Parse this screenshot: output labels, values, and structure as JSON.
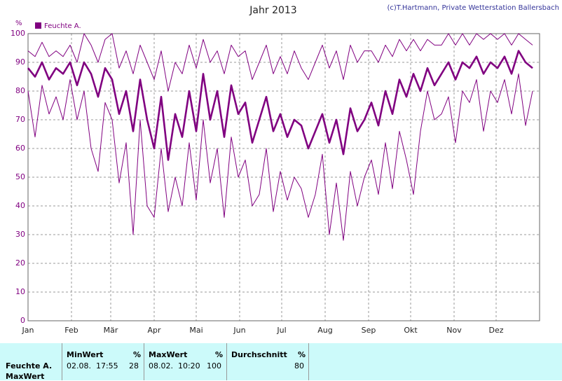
{
  "chart_data": {
    "type": "line",
    "title": "Jahr 2013",
    "credit": "(c)T.Hartmann, Private Wetterstation Ballersbach",
    "y_label": "%",
    "x": [
      1,
      6,
      11,
      16,
      21,
      26,
      31,
      36,
      41,
      46,
      51,
      56,
      61,
      66,
      71,
      76,
      81,
      86,
      91,
      96,
      101,
      106,
      111,
      116,
      121,
      126,
      131,
      136,
      141,
      146,
      151,
      156,
      161,
      166,
      171,
      176,
      181,
      186,
      191,
      196,
      201,
      206,
      211,
      216,
      221,
      226,
      231,
      236,
      241,
      246,
      251,
      256,
      261,
      266,
      271,
      276,
      281,
      286,
      291,
      296,
      301,
      306,
      311,
      316,
      321,
      326,
      331,
      336,
      341,
      346,
      351,
      356,
      361
    ],
    "xlim": [
      1,
      366
    ],
    "xticks": [
      {
        "value": 1,
        "label": "Jan"
      },
      {
        "value": 32,
        "label": "Feb"
      },
      {
        "value": 60,
        "label": "Mär"
      },
      {
        "value": 91,
        "label": "Apr"
      },
      {
        "value": 121,
        "label": "Mai"
      },
      {
        "value": 152,
        "label": "Jun"
      },
      {
        "value": 182,
        "label": "Jul"
      },
      {
        "value": 213,
        "label": "Aug"
      },
      {
        "value": 244,
        "label": "Sep"
      },
      {
        "value": 274,
        "label": "Okt"
      },
      {
        "value": 305,
        "label": "Nov"
      },
      {
        "value": 335,
        "label": "Dez"
      }
    ],
    "ylim": [
      0,
      100
    ],
    "yticks": [
      0,
      10,
      20,
      30,
      40,
      50,
      60,
      70,
      80,
      90,
      100
    ],
    "grid": true,
    "series": [
      {
        "color": "#800080",
        "values": [
          80,
          64,
          82,
          72,
          78,
          70,
          84,
          70,
          80,
          60,
          52,
          76,
          70,
          48,
          62,
          30,
          70,
          40,
          36,
          60,
          38,
          50,
          40,
          62,
          42,
          70,
          48,
          60,
          36,
          64,
          50,
          56,
          40,
          44,
          60,
          38,
          52,
          42,
          50,
          46,
          36,
          44,
          58,
          30,
          48,
          28,
          52,
          40,
          50,
          56,
          44,
          62,
          46,
          66,
          56,
          44,
          66,
          80,
          70,
          72,
          78,
          62,
          80,
          76,
          84,
          66,
          80,
          76,
          84,
          72,
          86,
          68,
          80
        ]
      },
      {
        "color": "#800080",
        "values": [
          94,
          92,
          97,
          92,
          94,
          92,
          96,
          90,
          100,
          96,
          90,
          98,
          100,
          88,
          94,
          86,
          96,
          90,
          84,
          94,
          80,
          90,
          86,
          96,
          88,
          98,
          90,
          94,
          86,
          96,
          92,
          94,
          84,
          90,
          96,
          86,
          92,
          86,
          94,
          88,
          84,
          90,
          96,
          88,
          94,
          84,
          96,
          90,
          94,
          94,
          90,
          96,
          92,
          98,
          94,
          98,
          94,
          98,
          96,
          96,
          100,
          96,
          100,
          96,
          100,
          98,
          100,
          98,
          100,
          96,
          100,
          98,
          96
        ]
      },
      {
        "name": "Feuchte A.",
        "color": "#800080",
        "values": [
          88,
          85,
          90,
          84,
          88,
          86,
          90,
          82,
          90,
          86,
          78,
          88,
          84,
          72,
          80,
          66,
          84,
          70,
          60,
          78,
          56,
          72,
          64,
          80,
          66,
          86,
          70,
          80,
          64,
          82,
          72,
          76,
          62,
          70,
          78,
          66,
          72,
          64,
          70,
          68,
          60,
          66,
          72,
          62,
          70,
          58,
          74,
          66,
          70,
          76,
          68,
          80,
          72,
          84,
          78,
          86,
          80,
          88,
          82,
          86,
          90,
          84,
          90,
          88,
          92,
          86,
          90,
          88,
          92,
          86,
          94,
          90,
          88
        ]
      }
    ]
  },
  "table": {
    "header": [
      "MinWert",
      "%",
      "MaxWert",
      "%",
      "Durchschnitt",
      "%"
    ],
    "rows": [
      [
        "Feuchte A.",
        "02.08.  17:55",
        "28",
        "08.02.  10:20",
        "100",
        "80"
      ],
      [
        "MaxWert"
      ]
    ]
  }
}
